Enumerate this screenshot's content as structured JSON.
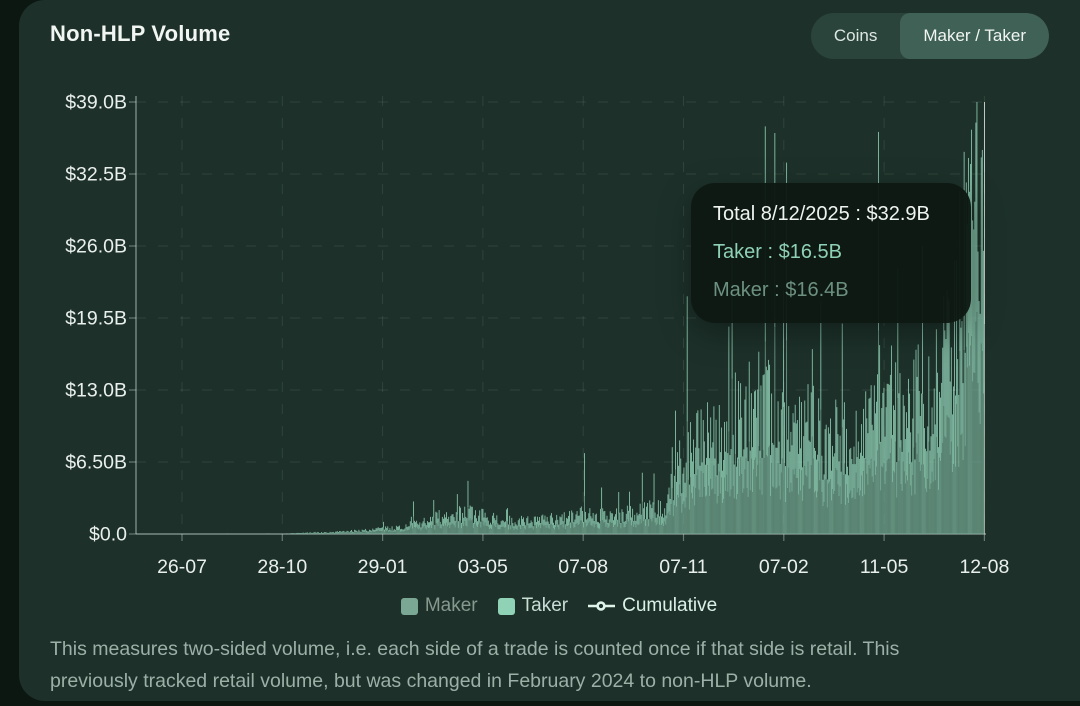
{
  "header": {
    "title": "Non-HLP Volume",
    "toggle": {
      "coins": "Coins",
      "maker_taker": "Maker / Taker",
      "active": "Maker / Taker"
    }
  },
  "tooltip": {
    "title": "Total 8/12/2025 : $32.9B",
    "taker": "Taker : $16.5B",
    "maker": "Maker : $16.4B"
  },
  "legend": {
    "maker": "Maker",
    "taker": "Taker",
    "cumulative": "Cumulative"
  },
  "footnote": {
    "line1": "This measures two-sided volume, i.e. each side of a trade is counted once if that side is retail. This",
    "line2": "previously tracked retail volume, but was changed in February 2024 to non-HLP volume."
  },
  "colors": {
    "card_background": "#1d312a",
    "page_background": "#0c1712",
    "maker": "#73a591",
    "taker": "#92d2b8",
    "highlight_maker": "#b9c8c1",
    "highlight_taker": "#e4ede8",
    "axis_text": "#e9efec"
  },
  "chart_data": {
    "type": "bar",
    "stacked": true,
    "title": "Non-HLP Volume",
    "series": [
      {
        "name": "Maker"
      },
      {
        "name": "Taker"
      }
    ],
    "legend_entries": [
      "Maker",
      "Taker",
      "Cumulative"
    ],
    "y_ticks": [
      "$39.0B",
      "$32.5B",
      "$26.0B",
      "$19.5B",
      "$13.0B",
      "$6.50B",
      "$0.0"
    ],
    "y_max_billions": 39,
    "y_tick_step_billions": 6.5,
    "x_ticks": [
      "26-07",
      "28-10",
      "29-01",
      "03-05",
      "07-08",
      "07-11",
      "07-02",
      "11-05",
      "12-08"
    ],
    "grid": "dashed both axes",
    "legend_position": "bottom center",
    "hovered_point": {
      "date": "8/12/2025",
      "total_billions": 32.9,
      "taker_billions": 16.5,
      "maker_billions": 16.4
    },
    "maker_share_of_total": 0.5,
    "total_days": 794,
    "envelope_total_billions": [
      [
        0,
        0
      ],
      [
        135,
        0.02
      ],
      [
        150,
        0.07
      ],
      [
        180,
        0.15
      ],
      [
        210,
        0.3
      ],
      [
        240,
        0.55
      ],
      [
        265,
        1.0
      ],
      [
        290,
        1.7
      ],
      [
        315,
        1.8
      ],
      [
        340,
        1.3
      ],
      [
        370,
        1.2
      ],
      [
        400,
        1.4
      ],
      [
        418,
        1.8
      ],
      [
        425,
        1.6
      ],
      [
        450,
        1.7
      ],
      [
        475,
        2.1
      ],
      [
        495,
        2.6
      ],
      [
        505,
        5.5
      ],
      [
        520,
        7.5
      ],
      [
        545,
        9.5
      ],
      [
        565,
        11
      ],
      [
        590,
        12
      ],
      [
        615,
        10.5
      ],
      [
        645,
        8.5
      ],
      [
        672,
        9.0
      ],
      [
        700,
        10.5
      ],
      [
        728,
        11.5
      ],
      [
        752,
        14
      ],
      [
        768,
        20
      ],
      [
        780,
        26
      ],
      [
        794,
        30
      ]
    ],
    "spikes_billions": [
      [
        300,
        3.6
      ],
      [
        419,
        7.3
      ],
      [
        435,
        4.2
      ],
      [
        588,
        36.8
      ],
      [
        597,
        36.2
      ],
      [
        605,
        22
      ],
      [
        640,
        21
      ],
      [
        660,
        19
      ],
      [
        694,
        36.3
      ],
      [
        712,
        24
      ],
      [
        735,
        26
      ],
      [
        758,
        22
      ],
      [
        770,
        31
      ],
      [
        774,
        34.5
      ],
      [
        777,
        28
      ],
      [
        781,
        36.5
      ],
      [
        784,
        30
      ],
      [
        787,
        25.5
      ],
      [
        790,
        34
      ],
      [
        793,
        39
      ]
    ]
  }
}
